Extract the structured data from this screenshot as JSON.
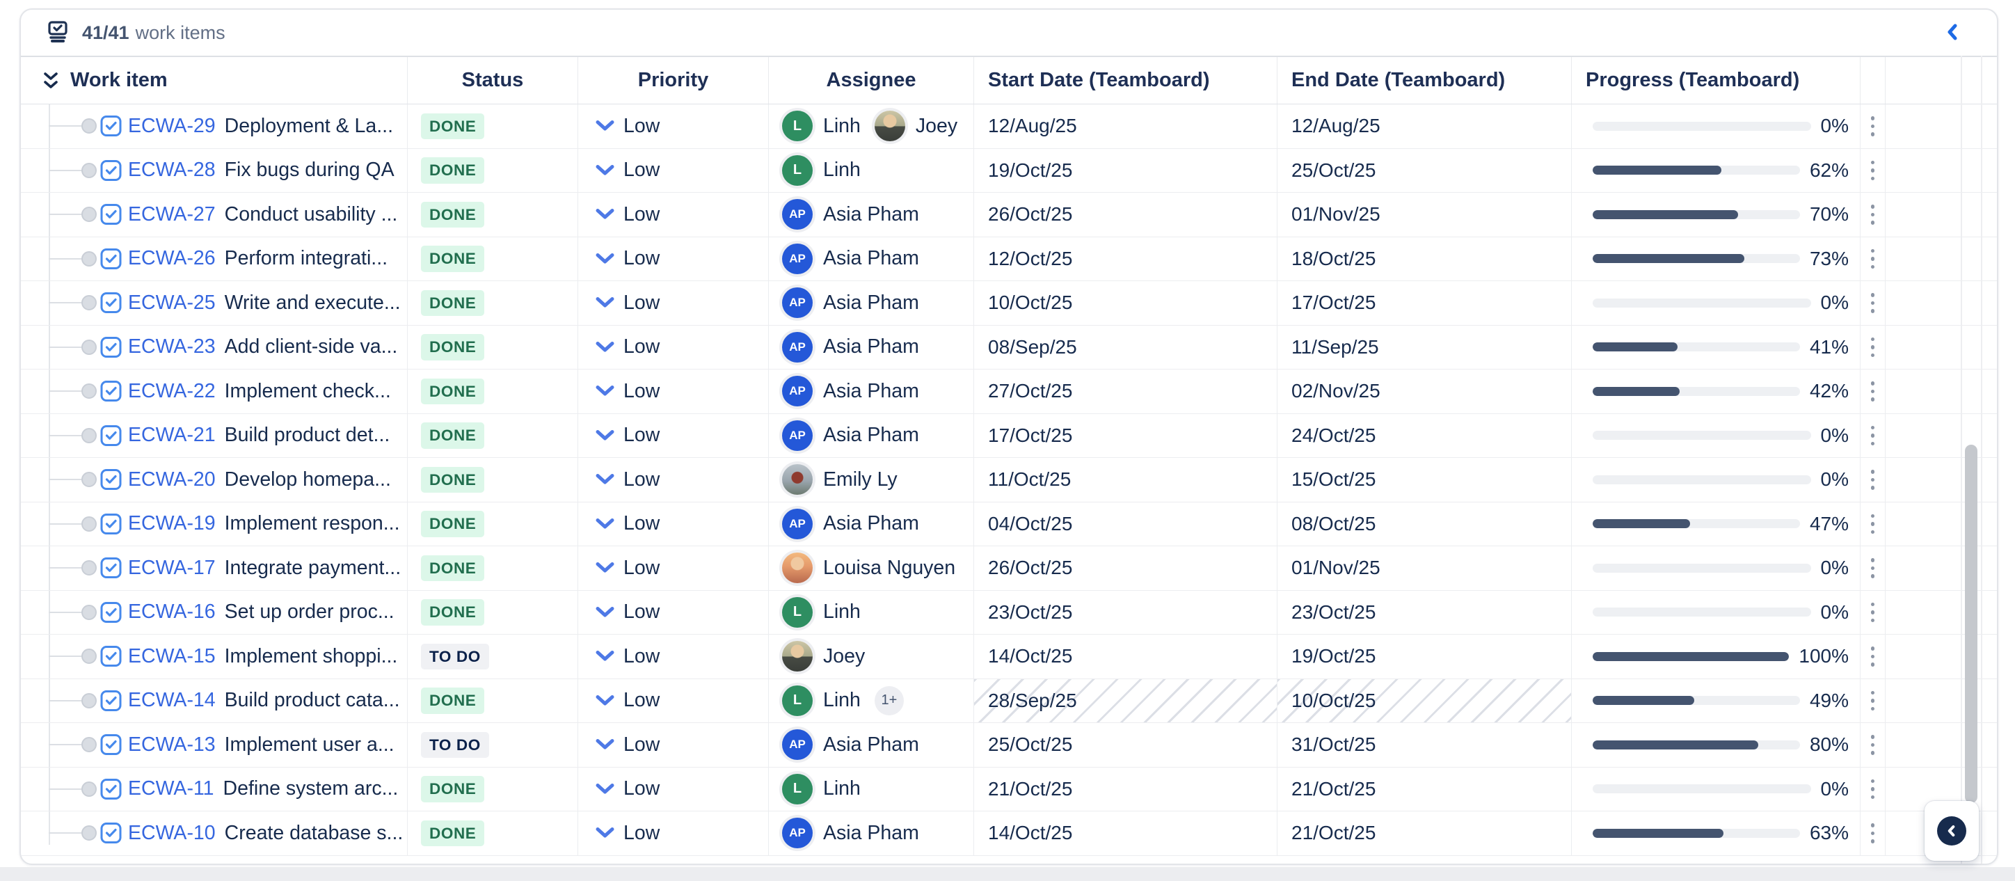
{
  "colors": {
    "text": "#172B4D",
    "link": "#3566DF",
    "done-bg": "#DCF7E9",
    "done-fg": "#216E4E",
    "todo-bg": "#F0F1F4",
    "todo-fg": "#0B214A",
    "priority-icon": "#4E79E6",
    "progress-fill": "#44546F",
    "progress-track": "#EEF0F3",
    "accent-blue": "#1D6AE5",
    "fab-navy": "#172B4D",
    "avatar-green": "#2E8E61",
    "avatar-blue": "#2458D8"
  },
  "toolbar": {
    "count": "41/41",
    "count_label": "work items"
  },
  "table": {
    "columns": [
      {
        "label": "Work item"
      },
      {
        "label": "Status"
      },
      {
        "label": "Priority"
      },
      {
        "label": "Assignee"
      },
      {
        "label": "Start Date (Teamboard)"
      },
      {
        "label": "End Date (Teamboard)"
      },
      {
        "label": "Progress (Teamboard)"
      },
      {
        "label": ""
      }
    ],
    "rows": [
      {
        "key": "ECWA-29",
        "title": "Deployment & La...",
        "status": "DONE",
        "status_kind": "done",
        "priority": "Low",
        "assignees": [
          {
            "name": "Linh",
            "kind": "initials",
            "initials": "L",
            "color": "#2E8E61"
          },
          {
            "name": "Joey",
            "kind": "photo",
            "photo": "joey"
          }
        ],
        "extra": "",
        "start": "12/Aug/25",
        "end": "12/Aug/25",
        "progress": 0,
        "progress_label": "0%",
        "hatched": false
      },
      {
        "key": "ECWA-28",
        "title": "Fix bugs during QA",
        "status": "DONE",
        "status_kind": "done",
        "priority": "Low",
        "assignees": [
          {
            "name": "Linh",
            "kind": "initials",
            "initials": "L",
            "color": "#2E8E61"
          }
        ],
        "extra": "",
        "start": "19/Oct/25",
        "end": "25/Oct/25",
        "progress": 62,
        "progress_label": "62%",
        "hatched": false
      },
      {
        "key": "ECWA-27",
        "title": "Conduct usability ...",
        "status": "DONE",
        "status_kind": "done",
        "priority": "Low",
        "assignees": [
          {
            "name": "Asia Pham",
            "kind": "initials",
            "initials": "AP",
            "color": "#2458D8"
          }
        ],
        "extra": "",
        "start": "26/Oct/25",
        "end": "01/Nov/25",
        "progress": 70,
        "progress_label": "70%",
        "hatched": false
      },
      {
        "key": "ECWA-26",
        "title": "Perform integrati...",
        "status": "DONE",
        "status_kind": "done",
        "priority": "Low",
        "assignees": [
          {
            "name": "Asia Pham",
            "kind": "initials",
            "initials": "AP",
            "color": "#2458D8"
          }
        ],
        "extra": "",
        "start": "12/Oct/25",
        "end": "18/Oct/25",
        "progress": 73,
        "progress_label": "73%",
        "hatched": false
      },
      {
        "key": "ECWA-25",
        "title": "Write and execute...",
        "status": "DONE",
        "status_kind": "done",
        "priority": "Low",
        "assignees": [
          {
            "name": "Asia Pham",
            "kind": "initials",
            "initials": "AP",
            "color": "#2458D8"
          }
        ],
        "extra": "",
        "start": "10/Oct/25",
        "end": "17/Oct/25",
        "progress": 0,
        "progress_label": "0%",
        "hatched": false
      },
      {
        "key": "ECWA-23",
        "title": "Add client-side va...",
        "status": "DONE",
        "status_kind": "done",
        "priority": "Low",
        "assignees": [
          {
            "name": "Asia Pham",
            "kind": "initials",
            "initials": "AP",
            "color": "#2458D8"
          }
        ],
        "extra": "",
        "start": "08/Sep/25",
        "end": "11/Sep/25",
        "progress": 41,
        "progress_label": "41%",
        "hatched": false
      },
      {
        "key": "ECWA-22",
        "title": "Implement check...",
        "status": "DONE",
        "status_kind": "done",
        "priority": "Low",
        "assignees": [
          {
            "name": "Asia Pham",
            "kind": "initials",
            "initials": "AP",
            "color": "#2458D8"
          }
        ],
        "extra": "",
        "start": "27/Oct/25",
        "end": "02/Nov/25",
        "progress": 42,
        "progress_label": "42%",
        "hatched": false
      },
      {
        "key": "ECWA-21",
        "title": "Build product det...",
        "status": "DONE",
        "status_kind": "done",
        "priority": "Low",
        "assignees": [
          {
            "name": "Asia Pham",
            "kind": "initials",
            "initials": "AP",
            "color": "#2458D8"
          }
        ],
        "extra": "",
        "start": "17/Oct/25",
        "end": "24/Oct/25",
        "progress": 0,
        "progress_label": "0%",
        "hatched": false
      },
      {
        "key": "ECWA-20",
        "title": "Develop homepa...",
        "status": "DONE",
        "status_kind": "done",
        "priority": "Low",
        "assignees": [
          {
            "name": "Emily Ly",
            "kind": "photo",
            "photo": "emily"
          }
        ],
        "extra": "",
        "start": "11/Oct/25",
        "end": "15/Oct/25",
        "progress": 0,
        "progress_label": "0%",
        "hatched": false
      },
      {
        "key": "ECWA-19",
        "title": "Implement respon...",
        "status": "DONE",
        "status_kind": "done",
        "priority": "Low",
        "assignees": [
          {
            "name": "Asia Pham",
            "kind": "initials",
            "initials": "AP",
            "color": "#2458D8"
          }
        ],
        "extra": "",
        "start": "04/Oct/25",
        "end": "08/Oct/25",
        "progress": 47,
        "progress_label": "47%",
        "hatched": false
      },
      {
        "key": "ECWA-17",
        "title": "Integrate payment...",
        "status": "DONE",
        "status_kind": "done",
        "priority": "Low",
        "assignees": [
          {
            "name": "Louisa Nguyen",
            "kind": "photo",
            "photo": "louisa"
          }
        ],
        "extra": "",
        "start": "26/Oct/25",
        "end": "01/Nov/25",
        "progress": 0,
        "progress_label": "0%",
        "hatched": false
      },
      {
        "key": "ECWA-16",
        "title": "Set up order proc...",
        "status": "DONE",
        "status_kind": "done",
        "priority": "Low",
        "assignees": [
          {
            "name": "Linh",
            "kind": "initials",
            "initials": "L",
            "color": "#2E8E61"
          }
        ],
        "extra": "",
        "start": "23/Oct/25",
        "end": "23/Oct/25",
        "progress": 0,
        "progress_label": "0%",
        "hatched": false
      },
      {
        "key": "ECWA-15",
        "title": "Implement shoppi...",
        "status": "TO DO",
        "status_kind": "todo",
        "priority": "Low",
        "assignees": [
          {
            "name": "Joey",
            "kind": "photo",
            "photo": "joey"
          }
        ],
        "extra": "",
        "start": "14/Oct/25",
        "end": "19/Oct/25",
        "progress": 100,
        "progress_label": "100%",
        "hatched": false
      },
      {
        "key": "ECWA-14",
        "title": "Build product cata...",
        "status": "DONE",
        "status_kind": "done",
        "priority": "Low",
        "assignees": [
          {
            "name": "Linh",
            "kind": "initials",
            "initials": "L",
            "color": "#2E8E61"
          }
        ],
        "extra": "1+",
        "start": "28/Sep/25",
        "end": "10/Oct/25",
        "progress": 49,
        "progress_label": "49%",
        "hatched": true
      },
      {
        "key": "ECWA-13",
        "title": "Implement user a...",
        "status": "TO DO",
        "status_kind": "todo",
        "priority": "Low",
        "assignees": [
          {
            "name": "Asia Pham",
            "kind": "initials",
            "initials": "AP",
            "color": "#2458D8"
          }
        ],
        "extra": "",
        "start": "25/Oct/25",
        "end": "31/Oct/25",
        "progress": 80,
        "progress_label": "80%",
        "hatched": false
      },
      {
        "key": "ECWA-11",
        "title": "Define system arc...",
        "status": "DONE",
        "status_kind": "done",
        "priority": "Low",
        "assignees": [
          {
            "name": "Linh",
            "kind": "initials",
            "initials": "L",
            "color": "#2E8E61"
          }
        ],
        "extra": "",
        "start": "21/Oct/25",
        "end": "21/Oct/25",
        "progress": 0,
        "progress_label": "0%",
        "hatched": false
      },
      {
        "key": "ECWA-10",
        "title": "Create database s...",
        "status": "DONE",
        "status_kind": "done",
        "priority": "Low",
        "assignees": [
          {
            "name": "Asia Pham",
            "kind": "initials",
            "initials": "AP",
            "color": "#2458D8"
          }
        ],
        "extra": "",
        "start": "14/Oct/25",
        "end": "21/Oct/25",
        "progress": 63,
        "progress_label": "63%",
        "hatched": false
      }
    ]
  }
}
